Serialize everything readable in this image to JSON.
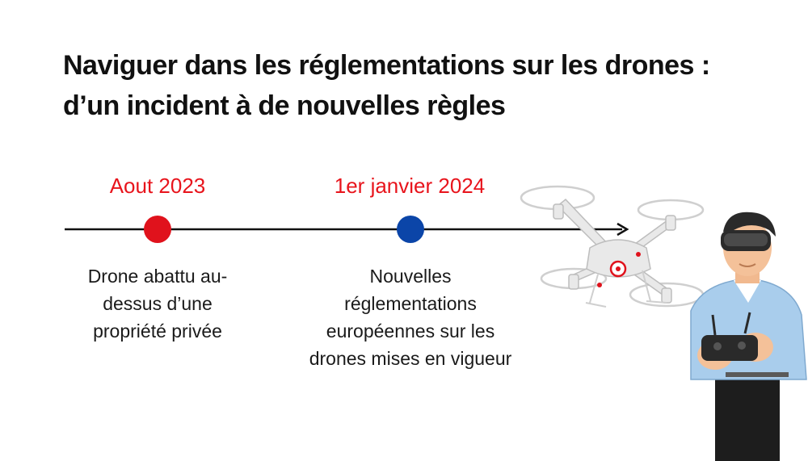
{
  "title": {
    "line1": "Naviguer dans les réglementations sur les drones :",
    "line2": "d’un incident à de nouvelles règles"
  },
  "events": [
    {
      "date": "Aout 2023",
      "description_lines": [
        "Drone abattu au-",
        "dessus d’une",
        "propriété privée"
      ],
      "marker_color": "#e0121c"
    },
    {
      "date": "1er janvier 2024",
      "description_lines": [
        "Nouvelles",
        "réglementations",
        "européennes sur les",
        "drones mises en vigueur"
      ],
      "marker_color": "#0b45a8"
    }
  ],
  "colors": {
    "date_text": "#e8141c",
    "line": "#111111",
    "title": "#111111"
  },
  "illustration": {
    "icons": [
      "drone-icon",
      "vr-headset-person-icon",
      "remote-controller-icon"
    ]
  }
}
